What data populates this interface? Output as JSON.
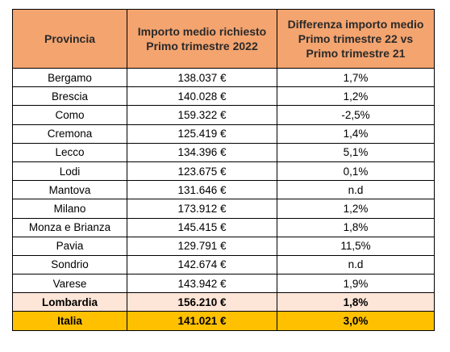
{
  "table": {
    "headers": [
      "Provincia",
      "Importo medio richiesto Primo trimestre 2022",
      "Differenza importo medio Primo trimestre 22 vs Primo trimestre 21"
    ],
    "rows": [
      [
        "Bergamo",
        "138.037 €",
        "1,7%"
      ],
      [
        "Brescia",
        "140.028 €",
        "1,2%"
      ],
      [
        "Como",
        "159.322 €",
        "-2,5%"
      ],
      [
        "Cremona",
        "125.419 €",
        "1,4%"
      ],
      [
        "Lecco",
        "134.396 €",
        "5,1%"
      ],
      [
        "Lodi",
        "123.675 €",
        "0,1%"
      ],
      [
        "Mantova",
        "131.646 €",
        "n.d"
      ],
      [
        "Milano",
        "173.912 €",
        "1,2%"
      ],
      [
        "Monza e Brianza",
        "145.415 €",
        "1,8%"
      ],
      [
        "Pavia",
        "129.791 €",
        "11,5%"
      ],
      [
        "Sondrio",
        "142.674 €",
        "n.d"
      ],
      [
        "Varese",
        "143.942 €",
        "1,9%"
      ]
    ],
    "lombardia": [
      "Lombardia",
      "156.210 €",
      "1,8%"
    ],
    "italia": [
      "Italia",
      "141.021 €",
      "3,0%"
    ]
  },
  "colors": {
    "header_bg": "#f4a46f",
    "lombardia_bg": "#fde5d7",
    "italia_bg": "#ffc000"
  }
}
